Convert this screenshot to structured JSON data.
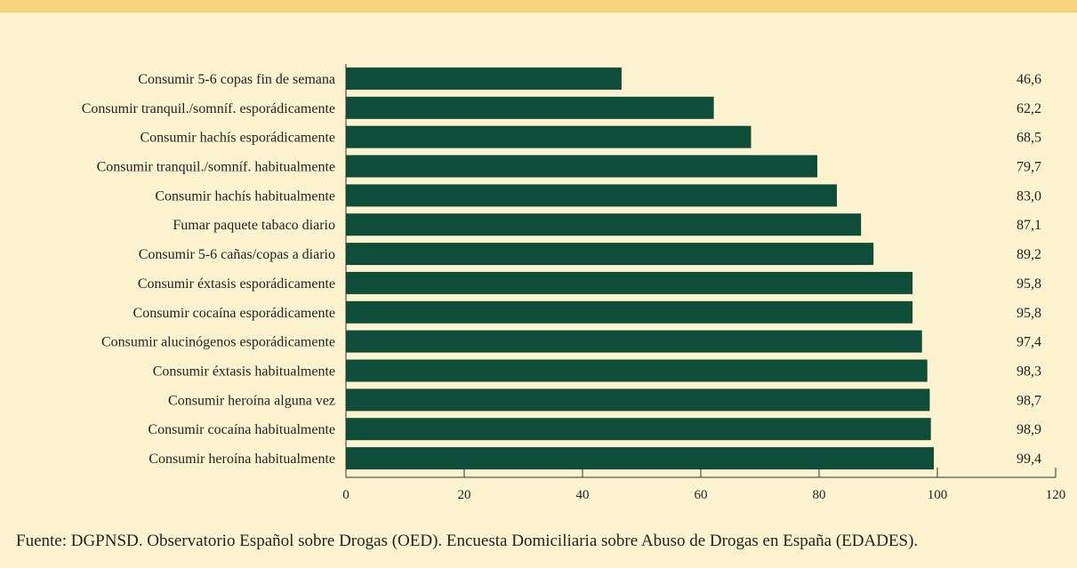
{
  "colors": {
    "background": "#fdf3cf",
    "band": "#f9d37c",
    "bar": "#0e4d3a",
    "axis": "#333333"
  },
  "chart_data": {
    "type": "bar",
    "orientation": "horizontal",
    "categories": [
      "Consumir 5-6 copas fin de semana",
      "Consumir tranquil./somníf. esporádicamente",
      "Consumir hachís esporádicamente",
      "Consumir tranquil./somníf. habitualmente",
      "Consumir hachís habitualmente",
      "Fumar paquete tabaco diario",
      "Consumir 5-6 cañas/copas a diario",
      "Consumir éxtasis esporádicamente",
      "Consumir cocaína esporádicamente",
      "Consumir alucinógenos esporádicamente",
      "Consumir éxtasis habitualmente",
      "Consumir heroína alguna vez",
      "Consumir cocaína habitualmente",
      "Consumir heroína habitualmente"
    ],
    "values": [
      46.6,
      62.2,
      68.5,
      79.7,
      83.0,
      87.1,
      89.2,
      95.8,
      95.8,
      97.4,
      98.3,
      98.7,
      98.9,
      99.4
    ],
    "value_labels": [
      "46,6",
      "62,2",
      "68,5",
      "79,7",
      "83,0",
      "87,1",
      "89,2",
      "95,8",
      "95,8",
      "97,4",
      "98,3",
      "98,7",
      "98,9",
      "99,4"
    ],
    "xlim": [
      0,
      120
    ],
    "xticks": [
      0,
      20,
      40,
      60,
      80,
      100,
      120
    ],
    "xtick_labels": [
      "0",
      "20",
      "40",
      "60",
      "80",
      "100",
      "120"
    ],
    "grid": false
  },
  "footer": {
    "source": "Fuente: DGPNSD. Observatorio Español sobre Drogas (OED). Encuesta Domiciliaria sobre Abuso de Drogas en España (EDADES)."
  }
}
